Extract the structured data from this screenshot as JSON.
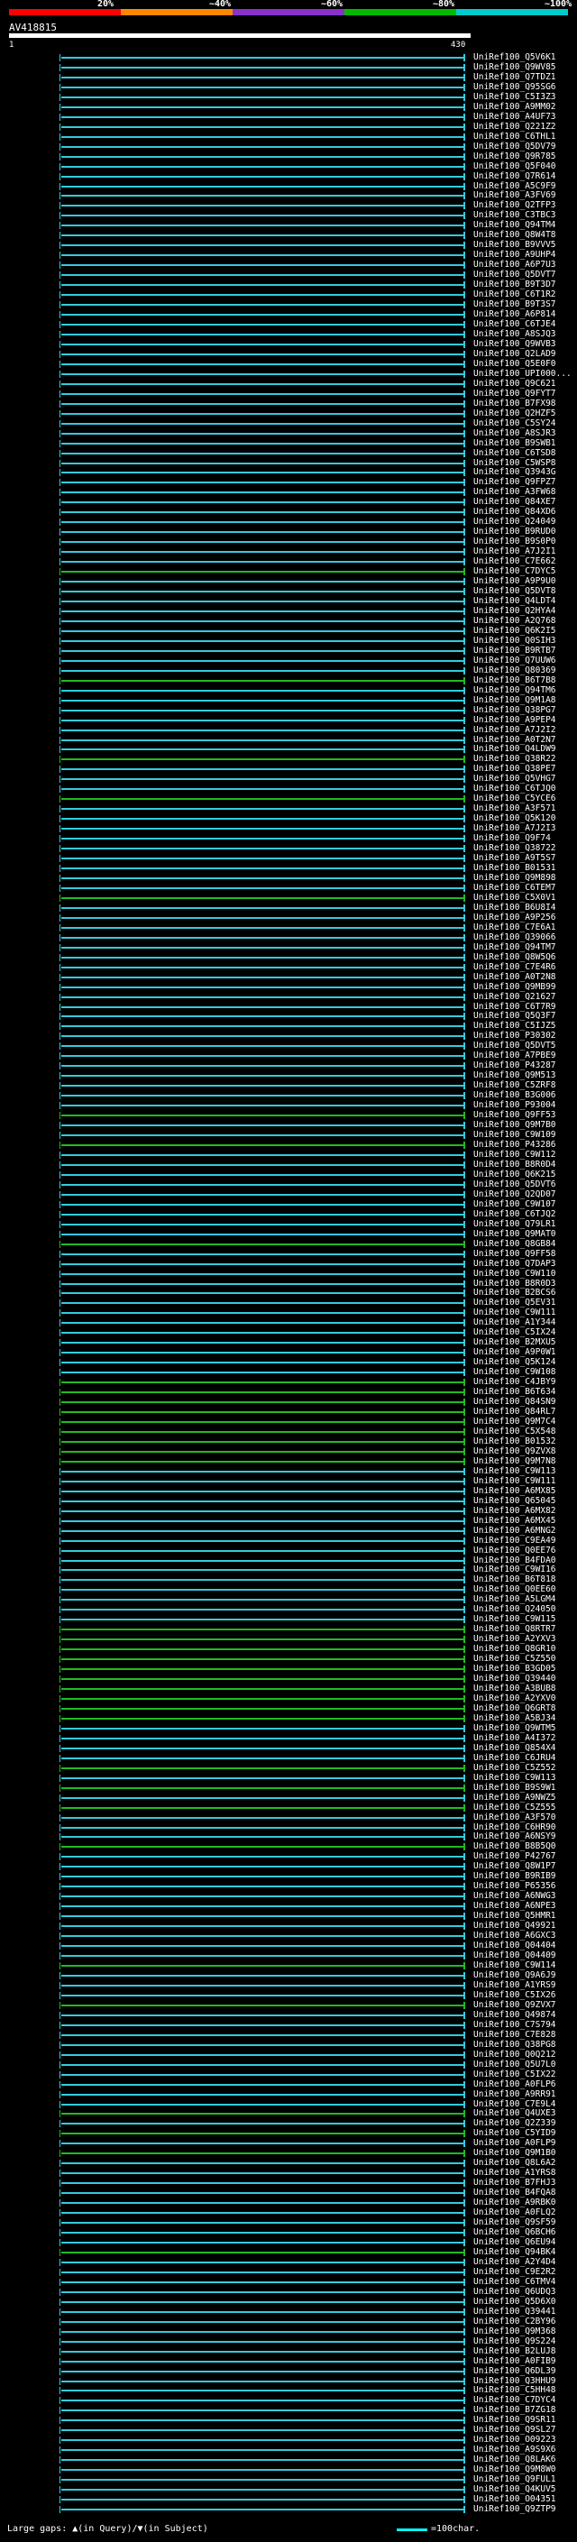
{
  "legend": {
    "labels": [
      "20%",
      "~40%",
      "~60%",
      "~80%",
      "~100%"
    ],
    "colors": [
      "#ff0000",
      "#ff8800",
      "#8833cc",
      "#00bb00",
      "#00cccc"
    ]
  },
  "query": {
    "name": "AV418815",
    "start": "1",
    "end": "430"
  },
  "colors": {
    "cyan": "#33ccdd",
    "green": "#22bb22",
    "gap": "#ffff00"
  },
  "hits": [
    {
      "name": "UniRef100_Q5V6K1",
      "color": "cyan"
    },
    {
      "name": "UniRef100_Q9WV85",
      "color": "cyan"
    },
    {
      "name": "UniRef100_Q7TDZ1",
      "color": "cyan"
    },
    {
      "name": "UniRef100_Q95SG6",
      "color": "cyan"
    },
    {
      "name": "UniRef100_C5I3Z3",
      "color": "cyan"
    },
    {
      "name": "UniRef100_A9MM02",
      "color": "cyan"
    },
    {
      "name": "UniRef100_A4UF73",
      "color": "cyan"
    },
    {
      "name": "UniRef100_Q221Z2",
      "color": "cyan"
    },
    {
      "name": "UniRef100_C6THL1",
      "color": "cyan"
    },
    {
      "name": "UniRef100_Q5DV79",
      "color": "cyan"
    },
    {
      "name": "UniRef100_Q9R785",
      "color": "cyan"
    },
    {
      "name": "UniRef100_Q5F040",
      "color": "cyan"
    },
    {
      "name": "UniRef100_Q7R614",
      "color": "cyan"
    },
    {
      "name": "UniRef100_A5C9F9",
      "color": "cyan"
    },
    {
      "name": "UniRef100_A3FV69",
      "color": "cyan"
    },
    {
      "name": "UniRef100_Q2TFP3",
      "color": "cyan"
    },
    {
      "name": "UniRef100_C3TBC3",
      "color": "cyan"
    },
    {
      "name": "UniRef100_Q94TM4",
      "color": "cyan"
    },
    {
      "name": "UniRef100_Q8W4T8",
      "color": "cyan"
    },
    {
      "name": "UniRef100_B9VVV5",
      "color": "cyan"
    },
    {
      "name": "UniRef100_A9UHP4",
      "color": "cyan"
    },
    {
      "name": "UniRef100_A6P7U3",
      "color": "cyan"
    },
    {
      "name": "UniRef100_Q5DVT7",
      "color": "cyan"
    },
    {
      "name": "UniRef100_B9T3D7",
      "color": "cyan"
    },
    {
      "name": "UniRef100_C6T1R2",
      "color": "cyan"
    },
    {
      "name": "UniRef100_B9T3S7",
      "color": "cyan"
    },
    {
      "name": "UniRef100_A6P814",
      "color": "cyan"
    },
    {
      "name": "UniRef100_C6TJE4",
      "color": "cyan"
    },
    {
      "name": "UniRef100_A8SJQ3",
      "color": "cyan"
    },
    {
      "name": "UniRef100_Q9WVB3",
      "color": "cyan"
    },
    {
      "name": "UniRef100_Q2LAD9",
      "color": "cyan"
    },
    {
      "name": "UniRef100_Q5E0F0",
      "color": "cyan"
    },
    {
      "name": "UniRef100_UPI000...",
      "color": "cyan"
    },
    {
      "name": "UniRef100_Q9C621",
      "color": "cyan"
    },
    {
      "name": "UniRef100_Q9FYT7",
      "color": "cyan"
    },
    {
      "name": "UniRef100_B7FX98",
      "color": "cyan"
    },
    {
      "name": "UniRef100_Q2HZF5",
      "color": "cyan"
    },
    {
      "name": "UniRef100_C5SY24",
      "color": "cyan"
    },
    {
      "name": "UniRef100_A8SJR3",
      "color": "cyan"
    },
    {
      "name": "UniRef100_B9SWB1",
      "color": "cyan"
    },
    {
      "name": "UniRef100_C6TSD8",
      "color": "cyan"
    },
    {
      "name": "UniRef100_C5WSP8",
      "color": "cyan"
    },
    {
      "name": "UniRef100_Q3943G",
      "color": "cyan"
    },
    {
      "name": "UniRef100_Q9FPZ7",
      "color": "cyan"
    },
    {
      "name": "UniRef100_A3FW68",
      "color": "cyan"
    },
    {
      "name": "UniRef100_Q84XE7",
      "color": "cyan"
    },
    {
      "name": "UniRef100_Q84XD6",
      "color": "cyan"
    },
    {
      "name": "UniRef100_Q24049",
      "color": "cyan"
    },
    {
      "name": "UniRef100_B9RUD0",
      "color": "cyan"
    },
    {
      "name": "UniRef100_B9S0P0",
      "color": "cyan"
    },
    {
      "name": "UniRef100_A7J2I1",
      "color": "cyan"
    },
    {
      "name": "UniRef100_C7E662",
      "color": "cyan"
    },
    {
      "name": "UniRef100_C7DYC5",
      "color": "green"
    },
    {
      "name": "UniRef100_A9P9U0",
      "color": "cyan"
    },
    {
      "name": "UniRef100_Q5DVT8",
      "color": "cyan"
    },
    {
      "name": "UniRef100_Q4LDT4",
      "color": "cyan"
    },
    {
      "name": "UniRef100_Q2HYA4",
      "color": "cyan"
    },
    {
      "name": "UniRef100_A2Q768",
      "color": "cyan"
    },
    {
      "name": "UniRef100_Q6K2I5",
      "color": "cyan"
    },
    {
      "name": "UniRef100_Q0SIH3",
      "color": "cyan"
    },
    {
      "name": "UniRef100_B9RTB7",
      "color": "cyan"
    },
    {
      "name": "UniRef100_Q7UUW6",
      "color": "cyan"
    },
    {
      "name": "UniRef100_Q80369",
      "color": "cyan"
    },
    {
      "name": "UniRef100_B6T7B8",
      "color": "green"
    },
    {
      "name": "UniRef100_Q94TM6",
      "color": "cyan"
    },
    {
      "name": "UniRef100_Q9M1A8",
      "color": "cyan"
    },
    {
      "name": "UniRef100_Q38PG7",
      "color": "cyan"
    },
    {
      "name": "UniRef100_A9PEP4",
      "color": "cyan"
    },
    {
      "name": "UniRef100_A7J2I2",
      "color": "cyan"
    },
    {
      "name": "UniRef100_A0T2N7",
      "color": "cyan"
    },
    {
      "name": "UniRef100_Q4LDW9",
      "color": "cyan"
    },
    {
      "name": "UniRef100_Q38R22",
      "color": "green"
    },
    {
      "name": "UniRef100_Q38PE7",
      "color": "cyan"
    },
    {
      "name": "UniRef100_Q5VHG7",
      "color": "cyan"
    },
    {
      "name": "UniRef100_C6TJQ0",
      "color": "cyan"
    },
    {
      "name": "UniRef100_C5YCE6",
      "color": "green"
    },
    {
      "name": "UniRef100_A3F571",
      "color": "cyan"
    },
    {
      "name": "UniRef100_Q5K120",
      "color": "cyan"
    },
    {
      "name": "UniRef100_A7J2I3",
      "color": "cyan"
    },
    {
      "name": "UniRef100_Q9F74",
      "color": "cyan"
    },
    {
      "name": "UniRef100_Q38722",
      "color": "cyan"
    },
    {
      "name": "UniRef100_A9T5S7",
      "color": "cyan"
    },
    {
      "name": "UniRef100_B01531",
      "color": "cyan"
    },
    {
      "name": "UniRef100_Q9M898",
      "color": "cyan"
    },
    {
      "name": "UniRef100_C6TEM7",
      "color": "cyan"
    },
    {
      "name": "UniRef100_C5X0V1",
      "color": "green"
    },
    {
      "name": "UniRef100_B6U8I4",
      "color": "cyan"
    },
    {
      "name": "UniRef100_A9P256",
      "color": "cyan"
    },
    {
      "name": "UniRef100_C7E6A1",
      "color": "cyan"
    },
    {
      "name": "UniRef100_Q39066",
      "color": "cyan"
    },
    {
      "name": "UniRef100_Q94TM7",
      "color": "cyan"
    },
    {
      "name": "UniRef100_Q8W5Q6",
      "color": "cyan"
    },
    {
      "name": "UniRef100_C7E4R6",
      "color": "cyan"
    },
    {
      "name": "UniRef100_A0T2N8",
      "color": "cyan"
    },
    {
      "name": "UniRef100_Q9MB99",
      "color": "cyan"
    },
    {
      "name": "UniRef100_Q21627",
      "color": "cyan"
    },
    {
      "name": "UniRef100_C6T7R9",
      "color": "cyan"
    },
    {
      "name": "UniRef100_Q5Q3F7",
      "color": "cyan"
    },
    {
      "name": "UniRef100_C5IJZ5",
      "color": "cyan"
    },
    {
      "name": "UniRef100_P30302",
      "color": "cyan"
    },
    {
      "name": "UniRef100_Q5DVT5",
      "color": "cyan"
    },
    {
      "name": "UniRef100_A7PBE9",
      "color": "cyan"
    },
    {
      "name": "UniRef100_P43287",
      "color": "cyan"
    },
    {
      "name": "UniRef100_Q9M513",
      "color": "cyan"
    },
    {
      "name": "UniRef100_C5ZRF8",
      "color": "cyan"
    },
    {
      "name": "UniRef100_B3G006",
      "color": "cyan"
    },
    {
      "name": "UniRef100_P93004",
      "color": "cyan"
    },
    {
      "name": "UniRef100_Q9FF53",
      "color": "green"
    },
    {
      "name": "UniRef100_Q9M7B0",
      "color": "cyan"
    },
    {
      "name": "UniRef100_C9W109",
      "color": "cyan"
    },
    {
      "name": "UniRef100_P43286",
      "color": "green"
    },
    {
      "name": "UniRef100_C9W112",
      "color": "cyan"
    },
    {
      "name": "UniRef100_B8R0D4",
      "color": "cyan"
    },
    {
      "name": "UniRef100_Q6K215",
      "color": "cyan"
    },
    {
      "name": "UniRef100_Q5DVT6",
      "color": "cyan"
    },
    {
      "name": "UniRef100_Q2QD07",
      "color": "cyan"
    },
    {
      "name": "UniRef100_C9W107",
      "color": "cyan"
    },
    {
      "name": "UniRef100_C6TJQ2",
      "color": "cyan"
    },
    {
      "name": "UniRef100_Q79LR1",
      "color": "cyan"
    },
    {
      "name": "UniRef100_Q9MAT0",
      "color": "cyan"
    },
    {
      "name": "UniRef100_Q8GB84",
      "color": "green"
    },
    {
      "name": "UniRef100_Q9FF58",
      "color": "cyan"
    },
    {
      "name": "UniRef100_Q7DAP3",
      "color": "cyan"
    },
    {
      "name": "UniRef100_C9W110",
      "color": "cyan"
    },
    {
      "name": "UniRef100_B8R0D3",
      "color": "cyan"
    },
    {
      "name": "UniRef100_B2BCS6",
      "color": "cyan"
    },
    {
      "name": "UniRef100_Q5EV31",
      "color": "cyan"
    },
    {
      "name": "UniRef100_C9W111",
      "color": "cyan"
    },
    {
      "name": "UniRef100_A1Y344",
      "color": "cyan"
    },
    {
      "name": "UniRef100_C5IX24",
      "color": "cyan"
    },
    {
      "name": "UniRef100_B2MXU5",
      "color": "cyan"
    },
    {
      "name": "UniRef100_A9P0W1",
      "color": "cyan"
    },
    {
      "name": "UniRef100_Q5K124",
      "color": "cyan"
    },
    {
      "name": "UniRef100_C9W108",
      "color": "cyan"
    },
    {
      "name": "UniRef100_C4JBY9",
      "color": "green"
    },
    {
      "name": "UniRef100_B6T634",
      "color": "green"
    },
    {
      "name": "UniRef100_Q84SN9",
      "color": "green"
    },
    {
      "name": "UniRef100_Q84RL7",
      "color": "green"
    },
    {
      "name": "UniRef100_Q9M7C4",
      "color": "green"
    },
    {
      "name": "UniRef100_C5X548",
      "color": "green"
    },
    {
      "name": "UniRef100_B01532",
      "color": "green"
    },
    {
      "name": "UniRef100_Q9ZVX8",
      "color": "green"
    },
    {
      "name": "UniRef100_Q9M7N8",
      "color": "green"
    },
    {
      "name": "UniRef100_C9W113",
      "color": "cyan"
    },
    {
      "name": "UniRef100_C9W111",
      "color": "cyan"
    },
    {
      "name": "UniRef100_A6MX85",
      "color": "cyan"
    },
    {
      "name": "UniRef100_Q65045",
      "color": "cyan"
    },
    {
      "name": "UniRef100_A6MX82",
      "color": "cyan"
    },
    {
      "name": "UniRef100_A6MX45",
      "color": "cyan"
    },
    {
      "name": "UniRef100_A6MNG2",
      "color": "cyan"
    },
    {
      "name": "UniRef100_C9EA49",
      "color": "cyan"
    },
    {
      "name": "UniRef100_Q0EE76",
      "color": "cyan"
    },
    {
      "name": "UniRef100_B4FDA0",
      "color": "cyan"
    },
    {
      "name": "UniRef100_C9WI16",
      "color": "cyan"
    },
    {
      "name": "UniRef100_B6T818",
      "color": "cyan"
    },
    {
      "name": "UniRef100_Q0EE60",
      "color": "cyan"
    },
    {
      "name": "UniRef100_A5LGM4",
      "color": "cyan"
    },
    {
      "name": "UniRef100_Q24050",
      "color": "cyan"
    },
    {
      "name": "UniRef100_C9W115",
      "color": "cyan"
    },
    {
      "name": "UniRef100_Q8RTR7",
      "color": "green"
    },
    {
      "name": "UniRef100_A2YXV3",
      "color": "green"
    },
    {
      "name": "UniRef100_Q8GR10",
      "color": "green"
    },
    {
      "name": "UniRef100_C5Z550",
      "color": "green"
    },
    {
      "name": "UniRef100_B3GD05",
      "color": "green"
    },
    {
      "name": "UniRef100_Q39440",
      "color": "green"
    },
    {
      "name": "UniRef100_A3BUB8",
      "color": "green"
    },
    {
      "name": "UniRef100_A2YXV0",
      "color": "green"
    },
    {
      "name": "UniRef100_Q6GRT8",
      "color": "green"
    },
    {
      "name": "UniRef100_A5BJ34",
      "color": "green"
    },
    {
      "name": "UniRef100_Q9WTM5",
      "color": "cyan"
    },
    {
      "name": "UniRef100_A4I372",
      "color": "cyan"
    },
    {
      "name": "UniRef100_Q854X4",
      "color": "cyan"
    },
    {
      "name": "UniRef100_C6JRU4",
      "color": "cyan"
    },
    {
      "name": "UniRef100_C5Z552",
      "color": "green"
    },
    {
      "name": "UniRef100_C9W113",
      "color": "cyan"
    },
    {
      "name": "UniRef100_B9S9W1",
      "color": "green"
    },
    {
      "name": "UniRef100_A9NWZ5",
      "color": "cyan"
    },
    {
      "name": "UniRef100_C5Z555",
      "color": "green"
    },
    {
      "name": "UniRef100_A3F570",
      "color": "cyan"
    },
    {
      "name": "UniRef100_C6HR90",
      "color": "cyan"
    },
    {
      "name": "UniRef100_A6NSY9",
      "color": "cyan"
    },
    {
      "name": "UniRef100_B8B5Q0",
      "color": "green"
    },
    {
      "name": "UniRef100_P42767",
      "color": "cyan"
    },
    {
      "name": "UniRef100_Q8W1P7",
      "color": "cyan"
    },
    {
      "name": "UniRef100_B9RIB9",
      "color": "cyan"
    },
    {
      "name": "UniRef100_P65356",
      "color": "cyan"
    },
    {
      "name": "UniRef100_A6NWG3",
      "color": "cyan"
    },
    {
      "name": "UniRef100_A6NPE3",
      "color": "cyan"
    },
    {
      "name": "UniRef100_Q5HMR1",
      "color": "cyan"
    },
    {
      "name": "UniRef100_Q49921",
      "color": "cyan"
    },
    {
      "name": "UniRef100_A6GXC3",
      "color": "cyan"
    },
    {
      "name": "UniRef100_Q04404",
      "color": "cyan"
    },
    {
      "name": "UniRef100_Q04409",
      "color": "cyan"
    },
    {
      "name": "UniRef100_C9W114",
      "color": "green"
    },
    {
      "name": "UniRef100_Q9A6J9",
      "color": "cyan"
    },
    {
      "name": "UniRef100_A1YRS9",
      "color": "cyan"
    },
    {
      "name": "UniRef100_C5IX26",
      "color": "cyan"
    },
    {
      "name": "UniRef100_Q9ZVX7",
      "color": "green"
    },
    {
      "name": "UniRef100_Q49874",
      "color": "cyan"
    },
    {
      "name": "UniRef100_C7S794",
      "color": "cyan"
    },
    {
      "name": "UniRef100_C7E828",
      "color": "cyan"
    },
    {
      "name": "UniRef100_Q38PG8",
      "color": "cyan"
    },
    {
      "name": "UniRef100_Q0Q212",
      "color": "cyan"
    },
    {
      "name": "UniRef100_Q5U7L0",
      "color": "cyan"
    },
    {
      "name": "UniRef100_C5IX22",
      "color": "cyan"
    },
    {
      "name": "UniRef100_A0FLP6",
      "color": "cyan"
    },
    {
      "name": "UniRef100_A9RR91",
      "color": "cyan"
    },
    {
      "name": "UniRef100_C7E9L4",
      "color": "cyan"
    },
    {
      "name": "UniRef100_Q4UXE3",
      "color": "green"
    },
    {
      "name": "UniRef100_Q2Z339",
      "color": "cyan"
    },
    {
      "name": "UniRef100_C5YID9",
      "color": "green"
    },
    {
      "name": "UniRef100_A0FLP9",
      "color": "cyan"
    },
    {
      "name": "UniRef100_Q9M1B0",
      "color": "green"
    },
    {
      "name": "UniRef100_Q8L6A2",
      "color": "cyan"
    },
    {
      "name": "UniRef100_A1YRS8",
      "color": "cyan"
    },
    {
      "name": "UniRef100_B7FHJ3",
      "color": "cyan"
    },
    {
      "name": "UniRef100_B4FQA8",
      "color": "cyan"
    },
    {
      "name": "UniRef100_A9RBK0",
      "color": "cyan"
    },
    {
      "name": "UniRef100_A0FLQ2",
      "color": "cyan"
    },
    {
      "name": "UniRef100_Q9SF59",
      "color": "cyan"
    },
    {
      "name": "UniRef100_Q6BCH6",
      "color": "cyan"
    },
    {
      "name": "UniRef100_Q6EU94",
      "color": "cyan"
    },
    {
      "name": "UniRef100_Q94BK4",
      "color": "green"
    },
    {
      "name": "UniRef100_A2Y4D4",
      "color": "cyan"
    },
    {
      "name": "UniRef100_C9E2R2",
      "color": "cyan"
    },
    {
      "name": "UniRef100_C6TMV4",
      "color": "cyan"
    },
    {
      "name": "UniRef100_Q6UDQ3",
      "color": "cyan"
    },
    {
      "name": "UniRef100_Q5D6X0",
      "color": "cyan"
    },
    {
      "name": "UniRef100_Q39441",
      "color": "cyan"
    },
    {
      "name": "UniRef100_C2BY96",
      "color": "cyan"
    },
    {
      "name": "UniRef100_Q9M368",
      "color": "cyan"
    },
    {
      "name": "UniRef100_Q9S224",
      "color": "cyan"
    },
    {
      "name": "UniRef100_B2LUJ8",
      "color": "cyan"
    },
    {
      "name": "UniRef100_A0FIB9",
      "color": "cyan"
    },
    {
      "name": "UniRef100_Q6DL39",
      "color": "cyan"
    },
    {
      "name": "UniRef100_Q3HHU9",
      "color": "cyan"
    },
    {
      "name": "UniRef100_C5HH48",
      "color": "cyan"
    },
    {
      "name": "UniRef100_C7DYC4",
      "color": "cyan"
    },
    {
      "name": "UniRef100_B7ZG18",
      "color": "cyan"
    },
    {
      "name": "UniRef100_Q9SR11",
      "color": "cyan"
    },
    {
      "name": "UniRef100_Q9SL27",
      "color": "cyan"
    },
    {
      "name": "UniRef100_O09223",
      "color": "cyan"
    },
    {
      "name": "UniRef100_A9S9X6",
      "color": "cyan"
    },
    {
      "name": "UniRef100_Q8LAK6",
      "color": "cyan"
    },
    {
      "name": "UniRef100_Q9M8W0",
      "color": "cyan"
    },
    {
      "name": "UniRef100_Q9FUL1",
      "color": "cyan"
    },
    {
      "name": "UniRef100_Q4KUV5",
      "color": "cyan"
    },
    {
      "name": "UniRef100_O04351",
      "color": "cyan"
    },
    {
      "name": "UniRef100_Q9ZTP9",
      "color": "cyan"
    }
  ],
  "footer": {
    "gaps_text": "Large gaps: ▲(in Query)/▼(in Subject)",
    "scale_text": "=100char."
  }
}
